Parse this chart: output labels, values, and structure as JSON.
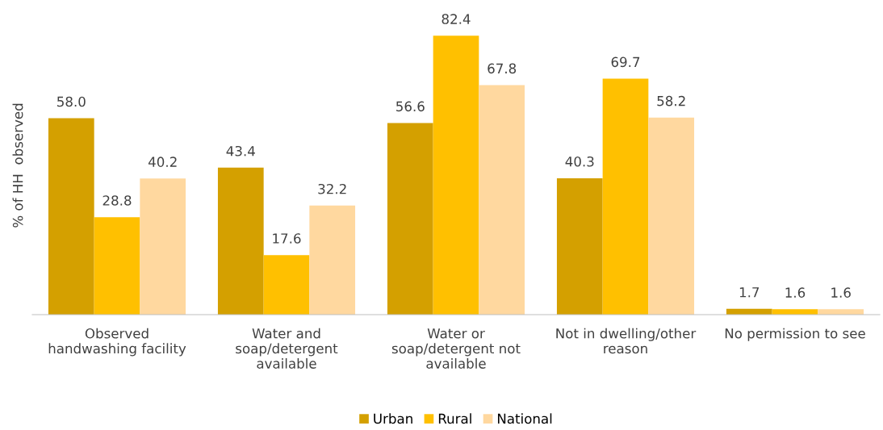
{
  "chart_data": {
    "type": "bar",
    "ylabel": "% of HH  observed",
    "categories": [
      "Observed\nhandwashing facility",
      "Water and\nsoap/detergent\navailable",
      "Water or\nsoap/detergent not\navailable",
      "Not in dwelling/other\nreason",
      "No permission to see"
    ],
    "series": [
      {
        "name": "Urban",
        "color": "#d4a000",
        "values": [
          58.0,
          43.4,
          56.6,
          40.3,
          1.7
        ],
        "value_labels": [
          "58.0",
          "43.4",
          "56.6",
          "40.3",
          "1.7"
        ]
      },
      {
        "name": "Rural",
        "color": "#ffc000",
        "values": [
          28.8,
          17.6,
          82.4,
          69.7,
          1.6
        ],
        "value_labels": [
          "28.8",
          "17.6",
          "82.4",
          "69.7",
          "1.6"
        ]
      },
      {
        "name": "National",
        "color": "#ffd89f",
        "values": [
          40.2,
          32.2,
          67.8,
          58.2,
          1.6
        ],
        "value_labels": [
          "40.2",
          "32.2",
          "67.8",
          "58.2",
          "1.6"
        ]
      }
    ],
    "legend": "bottom",
    "grid": false
  }
}
